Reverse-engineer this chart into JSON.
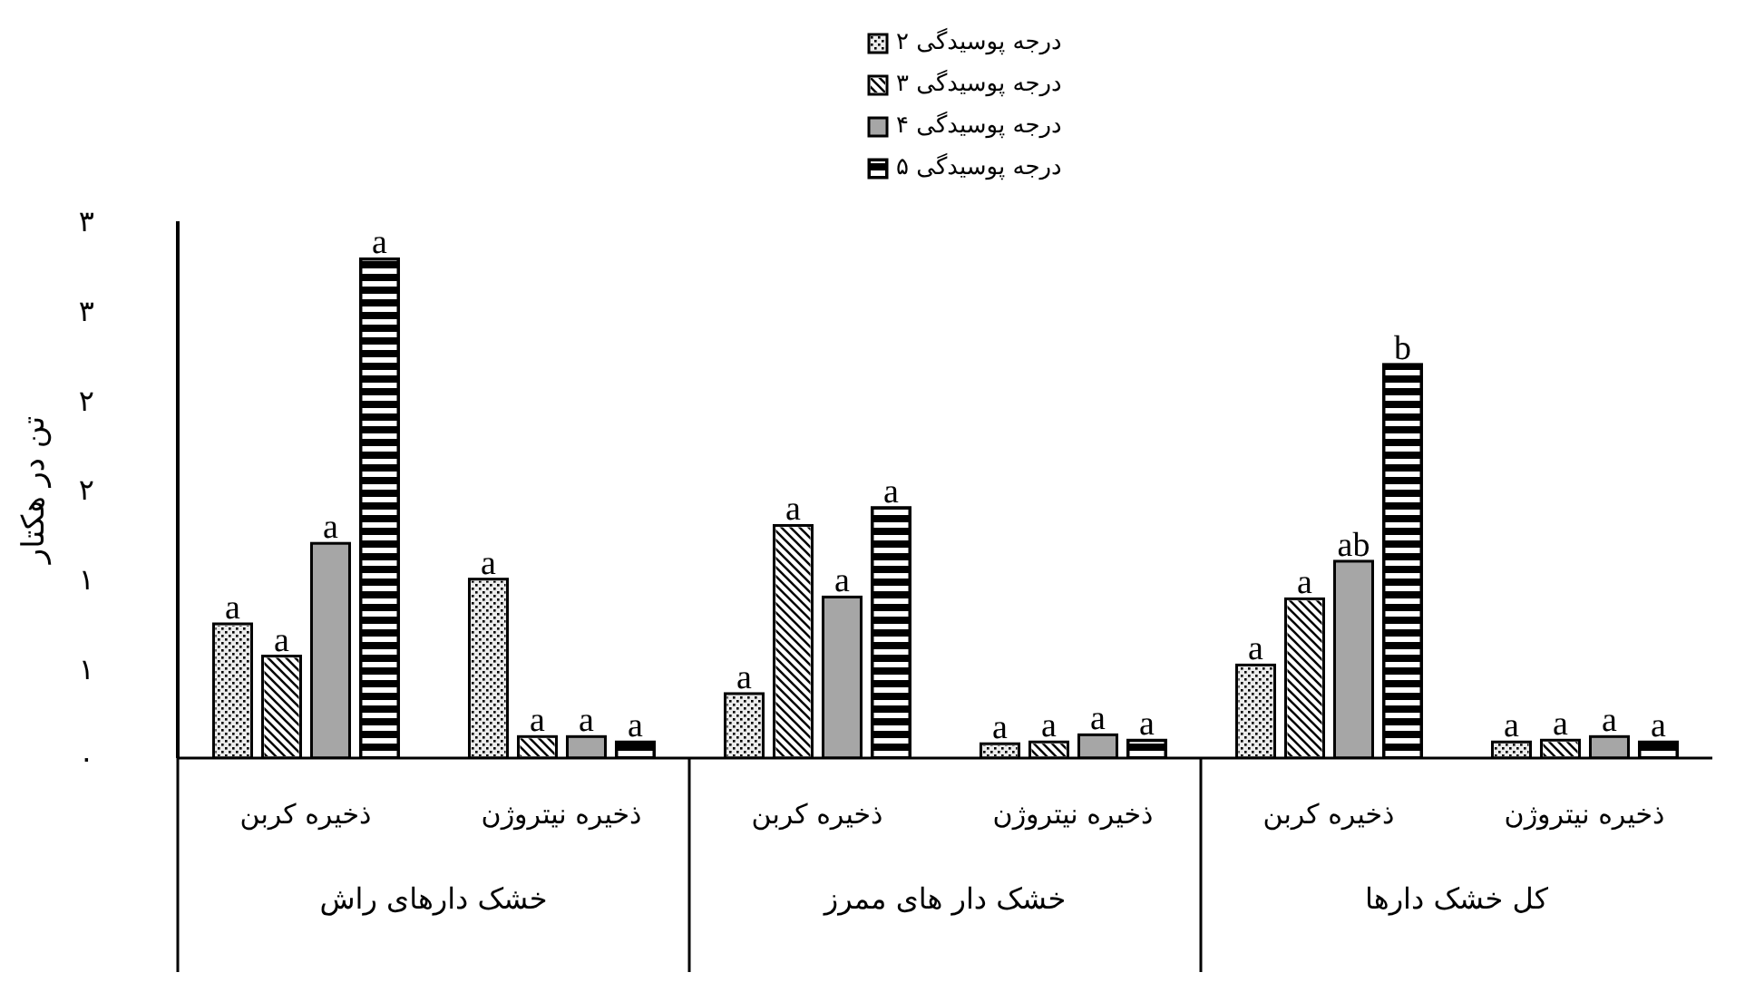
{
  "chart_data": {
    "type": "bar",
    "ylabel": "تن در هکتار",
    "categories": [
      "ذخیره کربن",
      "ذخیره نیتروژن",
      "ذخیره کربن",
      "ذخیره نیتروژن",
      "ذخیره کربن",
      "ذخیره نیتروژن"
    ],
    "series": [
      {
        "name": "درجه پوسیدگی ۲",
        "color": "#ebebeb",
        "values": [
          0.75,
          1.0,
          0.36,
          0.08,
          0.52,
          0.09
        ],
        "value_labels": [
          "a",
          "a",
          "a",
          "a",
          "a",
          "a"
        ]
      },
      {
        "name": "درجه پوسیدگی ۳",
        "color": "#ffffff",
        "values": [
          0.57,
          0.12,
          1.3,
          0.09,
          0.89,
          0.1
        ],
        "value_labels": [
          "a",
          "a",
          "a",
          "a",
          "a",
          "a"
        ]
      },
      {
        "name": "درجه پوسیدگی ۴",
        "color": "#a6a6a6",
        "values": [
          1.2,
          0.12,
          0.9,
          0.13,
          1.1,
          0.12
        ],
        "value_labels": [
          "a",
          "a",
          "a",
          "a",
          "ab",
          "a"
        ]
      },
      {
        "name": "درجه پوسیدگی ۵",
        "color": "#000000",
        "values": [
          2.79,
          0.09,
          1.4,
          0.1,
          2.2,
          0.09
        ],
        "value_labels": [
          "a",
          "a",
          "a",
          "a",
          "b",
          "a"
        ]
      }
    ],
    "annotations": [
      "خشک دارهای راش",
      "خشک دار های ممرز",
      "کل خشک دارها"
    ],
    "ylim": [
      0,
      3
    ],
    "yticks": [
      {
        "value": 0,
        "label": "۰"
      },
      {
        "value": 0.5,
        "label": "۱"
      },
      {
        "value": 1,
        "label": "۱"
      },
      {
        "value": 1.5,
        "label": "۲"
      },
      {
        "value": 2,
        "label": "۲"
      },
      {
        "value": 2.5,
        "label": "۳"
      },
      {
        "value": 3,
        "label": "۳"
      }
    ],
    "legend": "top",
    "grid": false
  }
}
